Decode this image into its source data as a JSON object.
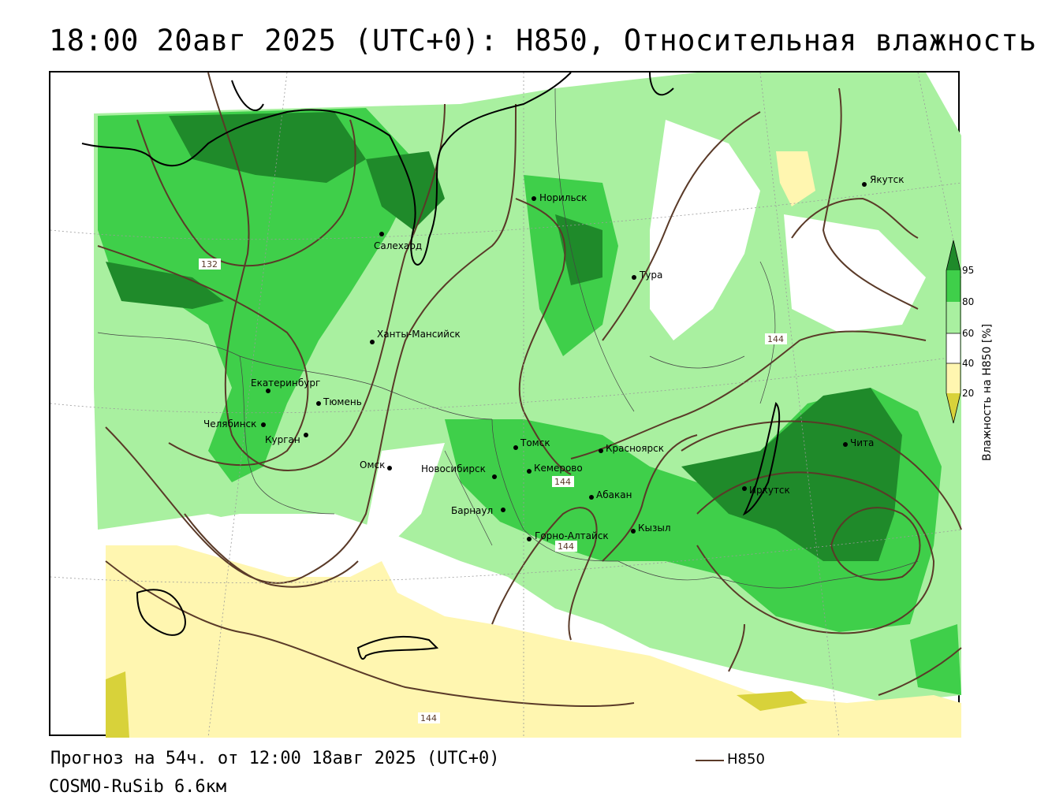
{
  "header": {
    "title": "18:00 20авг 2025 (UTC+0): H850, Относительная влажность"
  },
  "footer": {
    "forecast": "Прогноз на 54ч. от 12:00 18авг 2025 (UTC+0)",
    "model": "COSMO-RuSib 6.6км",
    "contour_legend_label": "H850"
  },
  "colorbar": {
    "title": "Влажность на H850 [%]",
    "ticks": [
      "95",
      "80",
      "60",
      "40",
      "20"
    ],
    "colors": {
      "above_95": "#1f8a2a",
      "80_95": "#3fcf4a",
      "60_80": "#a9f0a0",
      "40_60": "#ffffff",
      "20_40": "#fff6b0",
      "below_20": "#d8d23a"
    }
  },
  "map": {
    "contour_color": "#5a3a28",
    "contour_labels": [
      "132",
      "144",
      "144",
      "144",
      "144"
    ],
    "cities": [
      {
        "name": "Якутск"
      },
      {
        "name": "Норильск"
      },
      {
        "name": "Салехард"
      },
      {
        "name": "Тура"
      },
      {
        "name": "Ханты-Мансийск"
      },
      {
        "name": "Екатеринбург"
      },
      {
        "name": "Тюмень"
      },
      {
        "name": "Челябинск"
      },
      {
        "name": "Курган"
      },
      {
        "name": "Омск"
      },
      {
        "name": "Новосибирск"
      },
      {
        "name": "Томск"
      },
      {
        "name": "Кемерово"
      },
      {
        "name": "Красноярск"
      },
      {
        "name": "Абакан"
      },
      {
        "name": "Барнаул"
      },
      {
        "name": "Горно-Алтайск"
      },
      {
        "name": "Кызыл"
      },
      {
        "name": "Иркутск"
      },
      {
        "name": "Чита"
      }
    ]
  }
}
